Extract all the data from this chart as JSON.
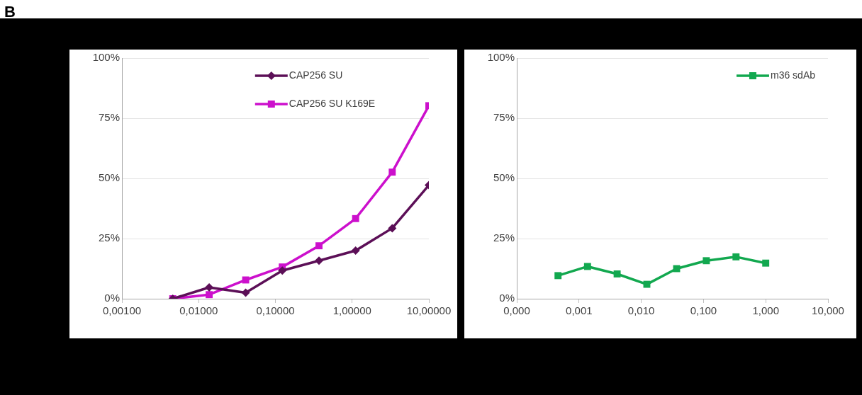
{
  "chart_data": [
    {
      "type": "line",
      "annotations": [
        "B"
      ],
      "log": "x",
      "grid": "y",
      "legend": "top",
      "line_style": "solid",
      "xlim": [
        0.001,
        10
      ],
      "xticks": [
        {
          "value": 0.001,
          "label": "0,00100"
        },
        {
          "value": 0.01,
          "label": "0,01000"
        },
        {
          "value": 0.1,
          "label": "0,10000"
        },
        {
          "value": 1,
          "label": "1,00000"
        },
        {
          "value": 10,
          "label": "10,00000"
        }
      ],
      "ylim": [
        0,
        100
      ],
      "yticks": [
        {
          "value": 0,
          "label": "0%"
        },
        {
          "value": 25,
          "label": "25%"
        },
        {
          "value": 50,
          "label": "50%"
        },
        {
          "value": 75,
          "label": "75%"
        },
        {
          "value": 100,
          "label": "100%"
        }
      ],
      "x": [
        0.0046,
        0.0137,
        0.041,
        0.123,
        0.37,
        1.11,
        3.33,
        10
      ],
      "series": [
        {
          "name": "CAP256 SU",
          "color": "#5c0f57",
          "marker": "diamond",
          "values": [
            0,
            4.7,
            2.5,
            11.7,
            15.8,
            20,
            29.3,
            47.2
          ]
        },
        {
          "name": "CAP256 SU K169E",
          "color": "#cc10cc",
          "marker": "square",
          "values": [
            0,
            1.7,
            7.8,
            13.2,
            22,
            33.3,
            52.6,
            80.2
          ]
        }
      ]
    },
    {
      "type": "line",
      "log": "x",
      "grid": "y",
      "legend": "top right",
      "line_style": "solid",
      "marker": "square",
      "xlim": [
        0.0001,
        10
      ],
      "xticks": [
        {
          "value": 0.0001,
          "label": "0,000"
        },
        {
          "value": 0.001,
          "label": "0,001"
        },
        {
          "value": 0.01,
          "label": "0,010"
        },
        {
          "value": 0.1,
          "label": "0,100"
        },
        {
          "value": 1,
          "label": "1,000"
        },
        {
          "value": 10,
          "label": "10,000"
        }
      ],
      "ylim": [
        0,
        100
      ],
      "yticks": [
        {
          "value": 0,
          "label": "0%"
        },
        {
          "value": 25,
          "label": "25%"
        },
        {
          "value": 50,
          "label": "50%"
        },
        {
          "value": 75,
          "label": "75%"
        },
        {
          "value": 100,
          "label": "100%"
        }
      ],
      "x": [
        0.00046,
        0.00137,
        0.0041,
        0.0123,
        0.037,
        0.111,
        0.333,
        1
      ],
      "series": [
        {
          "name": "m36 sdAb",
          "color": "#12a84f",
          "values": [
            9.6,
            13.4,
            10.3,
            6.0,
            12.5,
            15.8,
            17.4,
            14.8
          ]
        }
      ]
    }
  ]
}
